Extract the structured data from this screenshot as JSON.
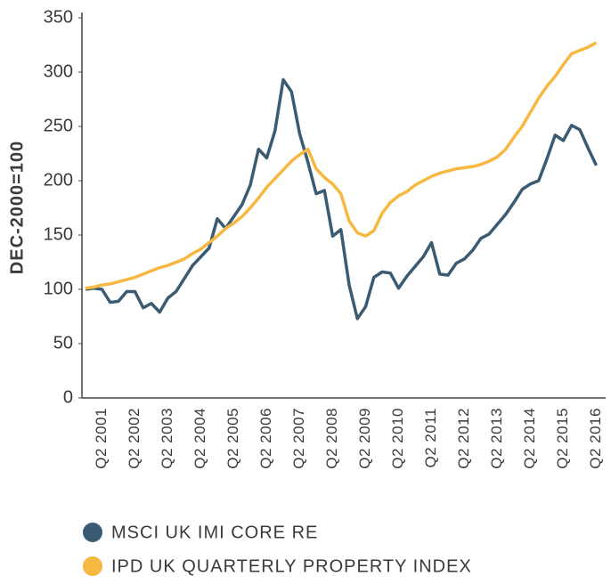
{
  "chart_data": {
    "type": "line",
    "y_label": "DEC-2000=100",
    "categories": [
      null,
      null,
      "Q2 2001",
      null,
      null,
      null,
      "Q2 2002",
      null,
      null,
      null,
      "Q2 2003",
      null,
      null,
      null,
      "Q2 2004",
      null,
      null,
      null,
      "Q2 2005",
      null,
      null,
      null,
      "Q2 2006",
      null,
      null,
      null,
      "Q2 2007",
      null,
      null,
      null,
      "Q2 2008",
      null,
      null,
      null,
      "Q2 2009",
      null,
      null,
      null,
      "Q2 2010",
      null,
      null,
      null,
      "Q2 2011",
      null,
      null,
      null,
      "Q2 2012",
      null,
      null,
      null,
      "Q2 2013",
      null,
      null,
      null,
      "Q2 2014",
      null,
      null,
      null,
      "Q2 2015",
      null,
      null,
      null,
      "Q2 2016"
    ],
    "series": [
      {
        "name": "MSCI UK IMI CORE RE",
        "color": "#3b5b73",
        "values": [
          100,
          101,
          100,
          88,
          89,
          98,
          98,
          83,
          87,
          79,
          92,
          98,
          110,
          122,
          130,
          138,
          165,
          156,
          167,
          178,
          196,
          229,
          221,
          246,
          293,
          282,
          243,
          217,
          188,
          191,
          149,
          155,
          104,
          73,
          84,
          111,
          116,
          115,
          101,
          112,
          121,
          130,
          143,
          114,
          113,
          124,
          128,
          136,
          147,
          151,
          160,
          169,
          180,
          192,
          197,
          200,
          220,
          242,
          237,
          251,
          247,
          230,
          214
        ]
      },
      {
        "name": "IPD UK QUARTERLY PROPERTY INDEX",
        "color": "#f6b840",
        "values": [
          101,
          102,
          104,
          105,
          107,
          109,
          111,
          114,
          117,
          120,
          122,
          125,
          128,
          133,
          137,
          143,
          149,
          156,
          161,
          167,
          175,
          184,
          194,
          202,
          210,
          218,
          224,
          229,
          211,
          203,
          197,
          188,
          163,
          152,
          149,
          154,
          170,
          180,
          186,
          190,
          196,
          200,
          204,
          207,
          209,
          211,
          212,
          213,
          215,
          218,
          222,
          229,
          240,
          250,
          263,
          276,
          287,
          296,
          307,
          317,
          320,
          323,
          327
        ]
      }
    ],
    "ylim": [
      0,
      350
    ],
    "yticks": [
      0,
      50,
      100,
      150,
      200,
      250,
      300,
      350
    ]
  }
}
